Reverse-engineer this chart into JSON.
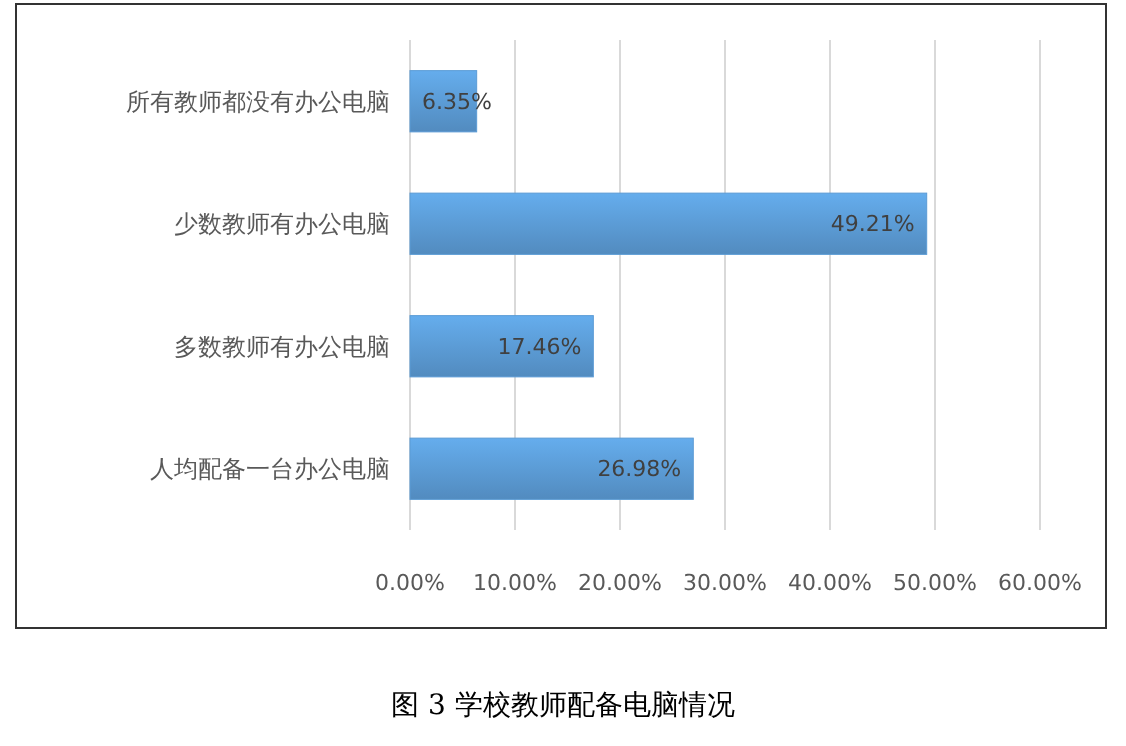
{
  "chart_data": {
    "type": "bar",
    "orientation": "horizontal",
    "title": "图 3 学校教师配备电脑情况",
    "categories": [
      "所有教师都没有办公电脑",
      "少数教师有办公电脑",
      "多数教师有办公电脑",
      "人均配备一台办公电脑"
    ],
    "values": [
      6.35,
      49.21,
      17.46,
      26.98
    ],
    "value_labels": [
      "6.35%",
      "49.21%",
      "17.46%",
      "26.98%"
    ],
    "color": "#5b9bd5",
    "xlim": [
      0,
      60
    ],
    "xticks": [
      {
        "value": 0,
        "label": "0.00%"
      },
      {
        "value": 10,
        "label": "10.00%"
      },
      {
        "value": 20,
        "label": "20.00%"
      },
      {
        "value": 30,
        "label": "30.00%"
      },
      {
        "value": 40,
        "label": "40.00%"
      },
      {
        "value": 50,
        "label": "50.00%"
      },
      {
        "value": 60,
        "label": "60.00%"
      }
    ],
    "grid": "x"
  }
}
